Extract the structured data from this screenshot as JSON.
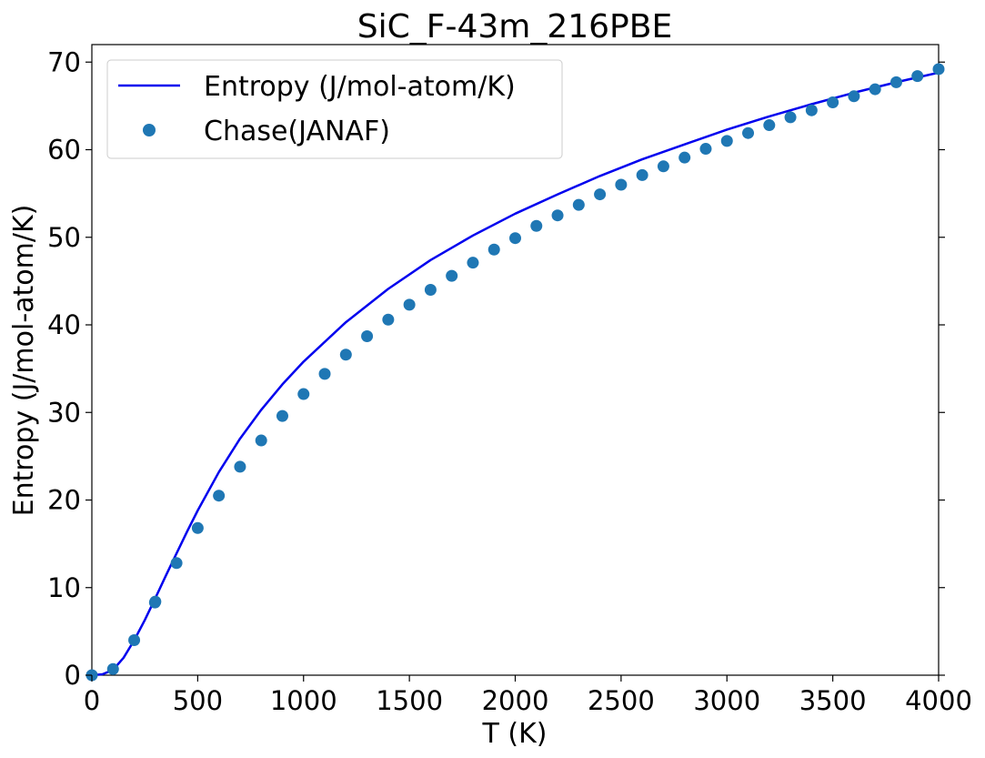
{
  "chart_data": {
    "type": "line",
    "title": "SiC_F-43m_216PBE",
    "xlabel": "T (K)",
    "ylabel": "Entropy (J/mol-atom/K)",
    "xlim": [
      0,
      4000
    ],
    "ylim": [
      0,
      72
    ],
    "xticks": [
      "0",
      "500",
      "1000",
      "1500",
      "2000",
      "2500",
      "3000",
      "3500",
      "4000"
    ],
    "yticks": [
      "0",
      "10",
      "20",
      "30",
      "40",
      "50",
      "60",
      "70"
    ],
    "grid": false,
    "legend_position": "top-left",
    "colors": {
      "line": "#0000ee",
      "markers": "#1f77b4"
    },
    "series": [
      {
        "name": "Entropy (J/mol-atom/K)",
        "style": "line",
        "x": [
          0,
          50,
          100,
          150,
          200,
          250,
          300,
          350,
          400,
          450,
          500,
          600,
          700,
          800,
          900,
          1000,
          1200,
          1400,
          1600,
          1800,
          2000,
          2200,
          2400,
          2600,
          2800,
          3000,
          3200,
          3400,
          3600,
          3800,
          4000
        ],
        "y": [
          0,
          0.1,
          0.6,
          2.0,
          4.0,
          6.3,
          8.8,
          11.4,
          13.9,
          16.4,
          18.8,
          23.2,
          27.0,
          30.3,
          33.2,
          35.8,
          40.3,
          44.1,
          47.4,
          50.2,
          52.7,
          54.9,
          57.0,
          58.9,
          60.6,
          62.3,
          63.8,
          65.2,
          66.5,
          67.7,
          68.8
        ]
      },
      {
        "name": "Chase(JANAF)",
        "style": "markers",
        "x": [
          0,
          100,
          200,
          298,
          300,
          400,
          500,
          600,
          700,
          800,
          900,
          1000,
          1100,
          1200,
          1300,
          1400,
          1500,
          1600,
          1700,
          1800,
          1900,
          2000,
          2100,
          2200,
          2300,
          2400,
          2500,
          2600,
          2700,
          2800,
          2900,
          3000,
          3100,
          3200,
          3300,
          3400,
          3500,
          3600,
          3700,
          3800,
          3900,
          4000
        ],
        "y": [
          0,
          0.7,
          4.0,
          8.3,
          8.4,
          12.8,
          16.8,
          20.5,
          23.8,
          26.8,
          29.6,
          32.1,
          34.4,
          36.6,
          38.7,
          40.6,
          42.3,
          44.0,
          45.6,
          47.1,
          48.6,
          49.9,
          51.3,
          52.5,
          53.7,
          54.9,
          56.0,
          57.1,
          58.1,
          59.1,
          60.1,
          61.0,
          61.9,
          62.8,
          63.7,
          64.5,
          65.4,
          66.1,
          66.9,
          67.7,
          68.4,
          69.2
        ]
      }
    ]
  }
}
